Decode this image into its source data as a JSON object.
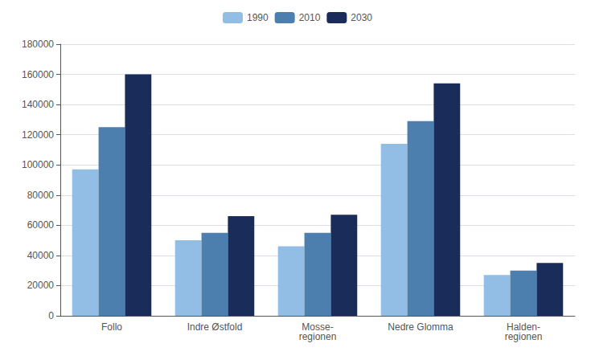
{
  "chart_data": {
    "type": "bar",
    "categories": [
      "Follo",
      "Indre Østfold",
      "Mosse-\nregionen",
      "Nedre Glomma",
      "Halden-\nregionen"
    ],
    "series": [
      {
        "name": "1990",
        "color": "#92bde5",
        "values": [
          97000,
          50000,
          46000,
          114000,
          27000
        ]
      },
      {
        "name": "2010",
        "color": "#4d7fae",
        "values": [
          125000,
          55000,
          55000,
          129000,
          30000
        ]
      },
      {
        "name": "2030",
        "color": "#1a2d5a",
        "values": [
          160000,
          66000,
          67000,
          154000,
          35000
        ]
      }
    ],
    "ylim": [
      0,
      180000
    ],
    "yticks": [
      0,
      20000,
      40000,
      60000,
      80000,
      100000,
      120000,
      140000,
      160000,
      180000
    ],
    "grid": true,
    "legend": "top"
  }
}
